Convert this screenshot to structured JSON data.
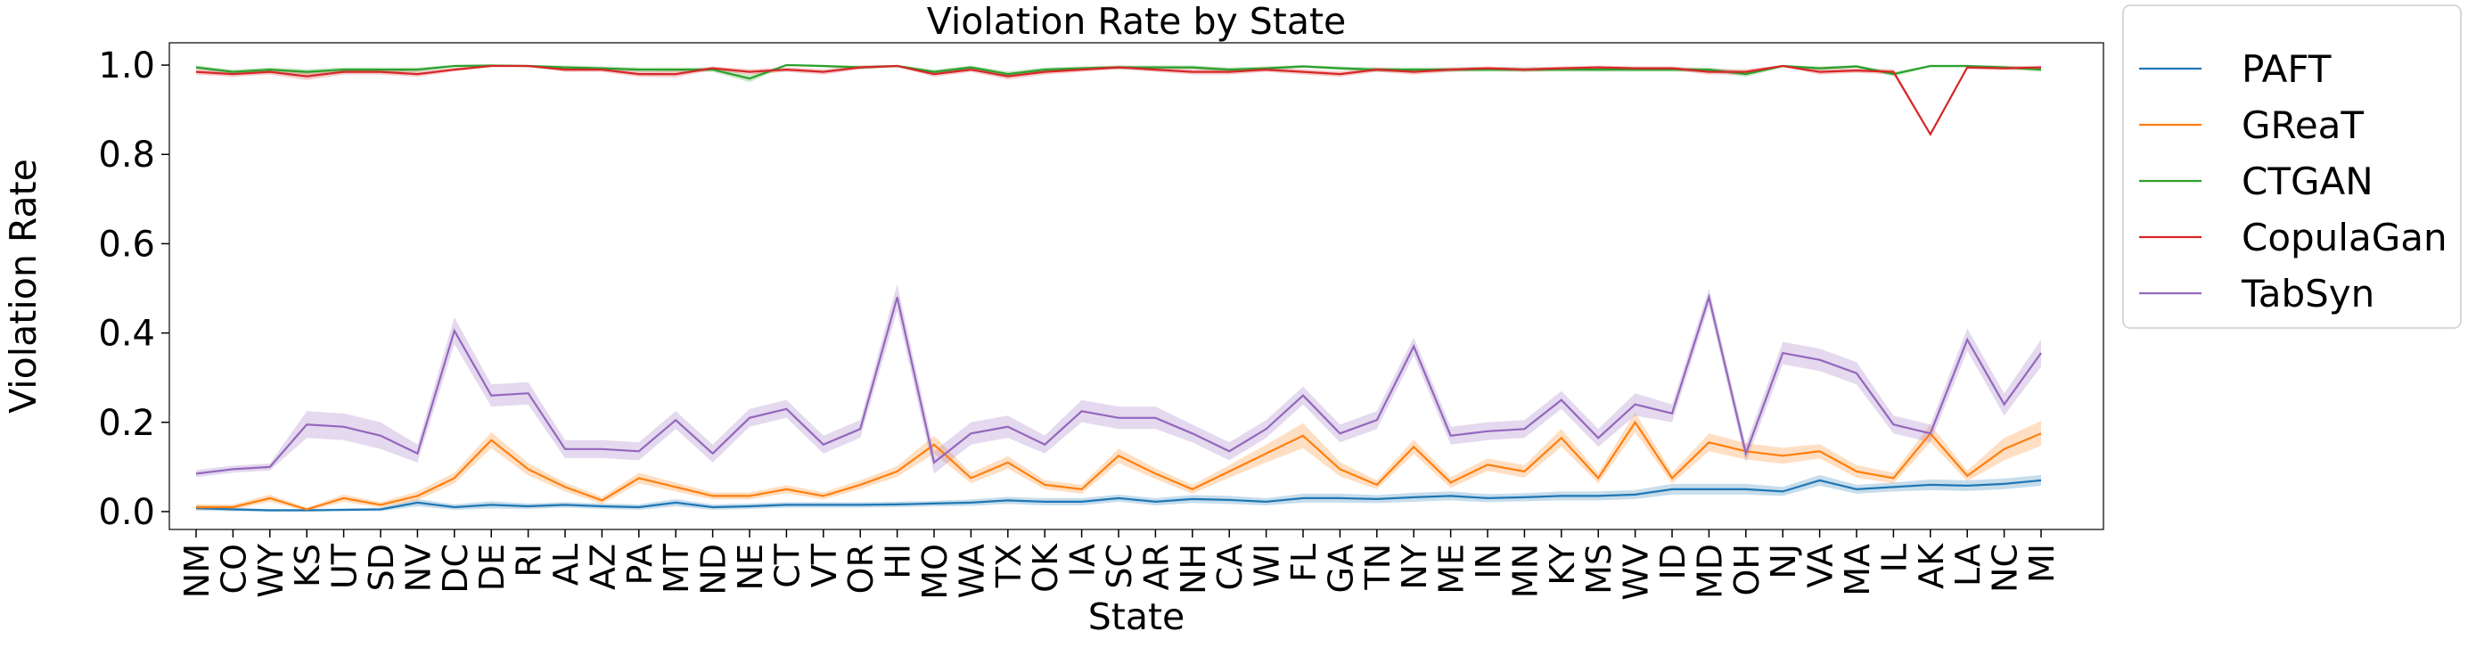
{
  "chart_data": {
    "type": "line",
    "title": "Violation Rate by State",
    "xlabel": "State",
    "ylabel": "Violation Rate",
    "ylim": [
      -0.04,
      1.05
    ],
    "yticks": [
      0.0,
      0.2,
      0.4,
      0.6,
      0.8,
      1.0
    ],
    "ytick_labels": [
      "0.0",
      "0.2",
      "0.4",
      "0.6",
      "0.8",
      "1.0"
    ],
    "grid": false,
    "legend_position": "outside-right",
    "categories": [
      "NM",
      "CO",
      "WY",
      "KS",
      "UT",
      "SD",
      "NV",
      "DC",
      "DE",
      "RI",
      "AL",
      "AZ",
      "PA",
      "MT",
      "ND",
      "NE",
      "CT",
      "VT",
      "OR",
      "HI",
      "MO",
      "WA",
      "TX",
      "OK",
      "IA",
      "SC",
      "AR",
      "NH",
      "CA",
      "WI",
      "FL",
      "GA",
      "TN",
      "NY",
      "ME",
      "IN",
      "MN",
      "KY",
      "MS",
      "WV",
      "ID",
      "MD",
      "OH",
      "NJ",
      "VA",
      "MA",
      "IL",
      "AK",
      "LA",
      "NC",
      "MI"
    ],
    "series": [
      {
        "name": "PAFT",
        "color": "#1f77b4",
        "values": [
          0.008,
          0.005,
          0.003,
          0.003,
          0.004,
          0.005,
          0.02,
          0.01,
          0.015,
          0.012,
          0.015,
          0.012,
          0.01,
          0.02,
          0.01,
          0.012,
          0.015,
          0.015,
          0.015,
          0.016,
          0.018,
          0.02,
          0.025,
          0.022,
          0.022,
          0.03,
          0.022,
          0.028,
          0.026,
          0.022,
          0.03,
          0.03,
          0.028,
          0.032,
          0.035,
          0.03,
          0.032,
          0.035,
          0.035,
          0.038,
          0.05,
          0.05,
          0.05,
          0.045,
          0.07,
          0.05,
          0.055,
          0.06,
          0.058,
          0.062,
          0.07
        ],
        "band": [
          0.006,
          0.004,
          0.003,
          0.003,
          0.003,
          0.004,
          0.008,
          0.006,
          0.008,
          0.006,
          0.006,
          0.006,
          0.006,
          0.008,
          0.006,
          0.006,
          0.006,
          0.006,
          0.006,
          0.006,
          0.006,
          0.007,
          0.008,
          0.008,
          0.008,
          0.008,
          0.008,
          0.009,
          0.009,
          0.008,
          0.01,
          0.01,
          0.009,
          0.01,
          0.01,
          0.009,
          0.009,
          0.01,
          0.01,
          0.01,
          0.012,
          0.012,
          0.012,
          0.01,
          0.012,
          0.01,
          0.01,
          0.012,
          0.012,
          0.012,
          0.012
        ]
      },
      {
        "name": "GReaT",
        "color": "#ff7f0e",
        "values": [
          0.01,
          0.01,
          0.03,
          0.005,
          0.03,
          0.015,
          0.035,
          0.075,
          0.16,
          0.095,
          0.055,
          0.025,
          0.075,
          0.055,
          0.035,
          0.035,
          0.05,
          0.035,
          0.06,
          0.09,
          0.15,
          0.075,
          0.11,
          0.06,
          0.05,
          0.125,
          0.085,
          0.05,
          0.09,
          0.13,
          0.17,
          0.095,
          0.06,
          0.145,
          0.065,
          0.105,
          0.09,
          0.165,
          0.075,
          0.2,
          0.075,
          0.155,
          0.135,
          0.125,
          0.135,
          0.09,
          0.075,
          0.175,
          0.08,
          0.14,
          0.175
        ],
        "band": [
          0.006,
          0.006,
          0.008,
          0.004,
          0.008,
          0.006,
          0.01,
          0.012,
          0.018,
          0.014,
          0.01,
          0.008,
          0.012,
          0.01,
          0.008,
          0.008,
          0.009,
          0.008,
          0.01,
          0.012,
          0.02,
          0.012,
          0.014,
          0.01,
          0.01,
          0.016,
          0.012,
          0.01,
          0.014,
          0.02,
          0.028,
          0.016,
          0.01,
          0.016,
          0.012,
          0.014,
          0.014,
          0.02,
          0.012,
          0.022,
          0.012,
          0.02,
          0.018,
          0.018,
          0.016,
          0.014,
          0.012,
          0.02,
          0.012,
          0.025,
          0.028
        ]
      },
      {
        "name": "CTGAN",
        "color": "#2ca02c",
        "values": [
          0.995,
          0.985,
          0.99,
          0.985,
          0.99,
          0.99,
          0.99,
          0.998,
          0.999,
          0.998,
          0.995,
          0.993,
          0.99,
          0.99,
          0.99,
          0.97,
          1.0,
          0.998,
          0.995,
          0.998,
          0.985,
          0.995,
          0.98,
          0.99,
          0.993,
          0.995,
          0.995,
          0.995,
          0.99,
          0.993,
          0.997,
          0.993,
          0.99,
          0.99,
          0.99,
          0.99,
          0.99,
          0.99,
          0.99,
          0.99,
          0.99,
          0.99,
          0.98,
          0.998,
          0.993,
          0.997,
          0.98,
          0.998,
          0.998,
          0.995,
          0.99
        ],
        "band": [
          0.004,
          0.005,
          0.005,
          0.006,
          0.005,
          0.005,
          0.005,
          0.003,
          0.002,
          0.003,
          0.004,
          0.004,
          0.005,
          0.005,
          0.005,
          0.008,
          0.002,
          0.003,
          0.004,
          0.003,
          0.005,
          0.004,
          0.006,
          0.005,
          0.004,
          0.004,
          0.004,
          0.004,
          0.005,
          0.004,
          0.003,
          0.004,
          0.005,
          0.005,
          0.005,
          0.005,
          0.005,
          0.005,
          0.005,
          0.005,
          0.005,
          0.005,
          0.006,
          0.003,
          0.004,
          0.003,
          0.005,
          0.003,
          0.003,
          0.004,
          0.005
        ]
      },
      {
        "name": "CopulaGan",
        "color": "#d62728",
        "values": [
          0.985,
          0.98,
          0.985,
          0.975,
          0.985,
          0.985,
          0.98,
          0.99,
          0.998,
          0.998,
          0.99,
          0.99,
          0.98,
          0.98,
          0.993,
          0.985,
          0.99,
          0.985,
          0.995,
          0.998,
          0.98,
          0.99,
          0.975,
          0.985,
          0.99,
          0.995,
          0.99,
          0.985,
          0.985,
          0.99,
          0.985,
          0.98,
          0.99,
          0.985,
          0.99,
          0.993,
          0.99,
          0.993,
          0.995,
          0.993,
          0.993,
          0.985,
          0.985,
          0.998,
          0.985,
          0.988,
          0.985,
          0.845,
          0.995,
          0.993,
          0.995
        ],
        "band": [
          0.006,
          0.006,
          0.006,
          0.008,
          0.006,
          0.006,
          0.006,
          0.004,
          0.002,
          0.002,
          0.005,
          0.005,
          0.006,
          0.007,
          0.004,
          0.006,
          0.005,
          0.006,
          0.004,
          0.002,
          0.006,
          0.005,
          0.007,
          0.006,
          0.005,
          0.004,
          0.005,
          0.006,
          0.006,
          0.005,
          0.006,
          0.006,
          0.005,
          0.006,
          0.005,
          0.004,
          0.005,
          0.004,
          0.004,
          0.004,
          0.004,
          0.006,
          0.006,
          0.002,
          0.006,
          0.005,
          0.006,
          0.004,
          0.004,
          0.004,
          0.004
        ]
      },
      {
        "name": "TabSyn",
        "color": "#9467bd",
        "values": [
          0.085,
          0.095,
          0.1,
          0.195,
          0.19,
          0.17,
          0.13,
          0.405,
          0.26,
          0.265,
          0.14,
          0.14,
          0.135,
          0.205,
          0.13,
          0.21,
          0.23,
          0.15,
          0.185,
          0.48,
          0.11,
          0.175,
          0.19,
          0.15,
          0.225,
          0.21,
          0.21,
          0.175,
          0.135,
          0.185,
          0.26,
          0.175,
          0.205,
          0.37,
          0.17,
          0.18,
          0.185,
          0.25,
          0.165,
          0.24,
          0.22,
          0.48,
          0.13,
          0.355,
          0.34,
          0.31,
          0.195,
          0.175,
          0.385,
          0.24,
          0.355
        ],
        "band": [
          0.008,
          0.008,
          0.008,
          0.03,
          0.03,
          0.03,
          0.02,
          0.03,
          0.025,
          0.025,
          0.02,
          0.02,
          0.02,
          0.02,
          0.02,
          0.02,
          0.02,
          0.02,
          0.02,
          0.03,
          0.025,
          0.025,
          0.025,
          0.02,
          0.025,
          0.025,
          0.025,
          0.02,
          0.02,
          0.02,
          0.02,
          0.02,
          0.02,
          0.02,
          0.02,
          0.02,
          0.02,
          0.02,
          0.02,
          0.025,
          0.02,
          0.02,
          0.02,
          0.025,
          0.025,
          0.025,
          0.02,
          0.02,
          0.025,
          0.025,
          0.03
        ]
      }
    ]
  }
}
